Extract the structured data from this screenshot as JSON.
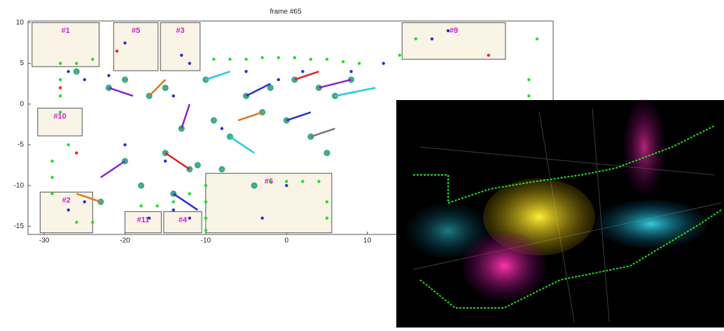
{
  "chart_data": {
    "type": "scatter",
    "title": "frame #65",
    "xlim": [
      -32,
      33
    ],
    "ylim": [
      -16,
      10.2
    ],
    "xticks": [
      -30,
      -20,
      -10,
      0,
      10
    ],
    "yticks": [
      -15,
      -10,
      -5,
      0,
      5,
      10
    ],
    "regions": [
      {
        "label": "#1",
        "x": [
          -31.5,
          -23.2
        ],
        "y": [
          4.6,
          10
        ]
      },
      {
        "label": "#5",
        "x": [
          -21.4,
          -15.9
        ],
        "y": [
          4.1,
          10
        ]
      },
      {
        "label": "#3",
        "x": [
          -15.6,
          -10.7
        ],
        "y": [
          4.1,
          10
        ]
      },
      {
        "label": "#9",
        "x": [
          14.3,
          27.1
        ],
        "y": [
          5.5,
          10
        ]
      },
      {
        "label": "#10",
        "x": [
          -30.8,
          -25.3
        ],
        "y": [
          -3.9,
          -0.5
        ]
      },
      {
        "label": "#2",
        "x": [
          -30.5,
          -24
        ],
        "y": [
          -15.8,
          -10.8
        ]
      },
      {
        "label": "#11",
        "x": [
          -20,
          -15.5
        ],
        "y": [
          -15.8,
          -13.2
        ]
      },
      {
        "label": "#4",
        "x": [
          -15.2,
          -10.5
        ],
        "y": [
          -15.8,
          -13.2
        ]
      },
      {
        "label": "#6",
        "x": [
          -10,
          5.6
        ],
        "y": [
          -15.8,
          -8.5
        ]
      }
    ],
    "series": [
      {
        "color": "#22dd22",
        "x": [
          -28,
          -26,
          -24,
          -28,
          -28,
          -28,
          -27,
          -9,
          -7,
          -5,
          -3,
          -1,
          1,
          3,
          5,
          7,
          9,
          -10,
          -10,
          -10,
          -10,
          -2,
          0,
          2,
          4,
          -18,
          -16,
          -14,
          -12,
          -29,
          -29,
          -29,
          5,
          5,
          14,
          16,
          30,
          30,
          31,
          -24,
          -26
        ],
        "y": [
          5,
          5,
          5.5,
          3,
          1,
          -1,
          -5,
          5.5,
          5.5,
          5.5,
          5.7,
          5.7,
          5.7,
          5.5,
          5.5,
          5.2,
          5,
          -10,
          -12,
          -14,
          -15.5,
          -9.5,
          -9.5,
          -9.5,
          -9.5,
          -12.5,
          -12.5,
          -12,
          -11,
          -7,
          -9,
          -11,
          -12,
          -14,
          6,
          8,
          3,
          1,
          8,
          -14.5,
          -14.5
        ]
      },
      {
        "color": "#2233cc",
        "x": [
          -27,
          -25,
          -22,
          -20,
          -13,
          -12,
          -5,
          -1,
          2,
          8,
          12,
          18,
          20,
          -20,
          -15,
          -25,
          -27,
          -17,
          -14,
          -12,
          -3,
          0,
          -14,
          -8
        ],
        "y": [
          4,
          3,
          3.5,
          7.5,
          6,
          5,
          4,
          3,
          4,
          4,
          5,
          8,
          9,
          -5,
          -7,
          -12,
          -13,
          -14,
          -13,
          -14,
          -14,
          -10,
          1,
          -3
        ]
      },
      {
        "color": "#4aa89a",
        "x": [
          -26,
          -22,
          -20,
          -17,
          -15,
          -10,
          -5,
          -2,
          1,
          4,
          6,
          8,
          -3,
          0,
          3,
          5,
          -20,
          -15,
          -12,
          -11,
          -7,
          -9,
          -18,
          -23,
          -14,
          -8,
          -4,
          -13
        ],
        "y": [
          4,
          2,
          3,
          1,
          2,
          3,
          1,
          2,
          3,
          2,
          1,
          3,
          -1,
          -2,
          -4,
          -6,
          -7,
          -6,
          -8,
          -7.5,
          -4,
          -2,
          -10,
          -12,
          -11,
          -8,
          -10,
          -3
        ]
      },
      {
        "color": "#ee2222",
        "x": [
          -26,
          -28,
          25,
          -21
        ],
        "y": [
          -6,
          2,
          6,
          6.5
        ]
      }
    ],
    "tracks": [
      {
        "color": "#8822cc",
        "x": [
          -22,
          -19
        ],
        "y": [
          2,
          1
        ]
      },
      {
        "color": "#dd7722",
        "x": [
          -17,
          -15
        ],
        "y": [
          1,
          3
        ]
      },
      {
        "color": "#22ccdd",
        "x": [
          -10,
          -7
        ],
        "y": [
          3,
          4
        ]
      },
      {
        "color": "#2233cc",
        "x": [
          -5,
          -2
        ],
        "y": [
          1,
          2.5
        ]
      },
      {
        "color": "#dd2222",
        "x": [
          1,
          4
        ],
        "y": [
          3,
          4
        ]
      },
      {
        "color": "#8822cc",
        "x": [
          4,
          8
        ],
        "y": [
          2,
          3
        ]
      },
      {
        "color": "#22ccdd",
        "x": [
          6,
          11
        ],
        "y": [
          1,
          2
        ]
      },
      {
        "color": "#dd7722",
        "x": [
          -3,
          -6
        ],
        "y": [
          -1,
          -2
        ]
      },
      {
        "color": "#2233cc",
        "x": [
          0,
          3
        ],
        "y": [
          -2,
          -1
        ]
      },
      {
        "color": "#dd2222",
        "x": [
          -12,
          -15
        ],
        "y": [
          -8,
          -6
        ]
      },
      {
        "color": "#8822cc",
        "x": [
          -20,
          -23
        ],
        "y": [
          -7,
          -9
        ]
      },
      {
        "color": "#22ccdd",
        "x": [
          -7,
          -4
        ],
        "y": [
          -4,
          -6
        ]
      },
      {
        "color": "#dd7722",
        "x": [
          -23,
          -26
        ],
        "y": [
          -12,
          -11
        ]
      },
      {
        "color": "#2233cc",
        "x": [
          -14,
          -11
        ],
        "y": [
          -11,
          -13
        ]
      },
      {
        "color": "#777777",
        "x": [
          3,
          6
        ],
        "y": [
          -4,
          -3
        ]
      },
      {
        "color": "#8822cc",
        "x": [
          -13,
          -12
        ],
        "y": [
          -3,
          0
        ]
      }
    ]
  }
}
